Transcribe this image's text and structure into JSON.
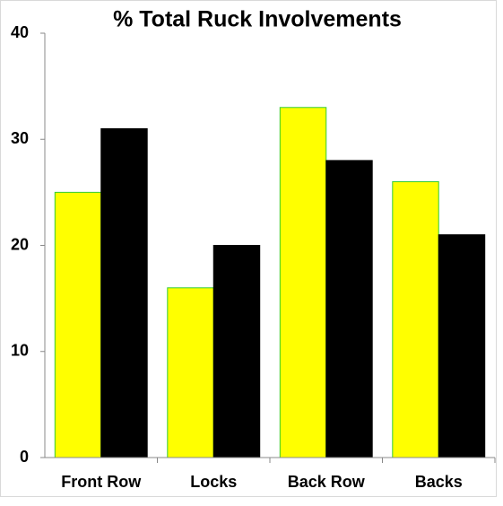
{
  "chart_data": {
    "type": "bar",
    "title": "% Total Ruck Involvements",
    "categories": [
      "Front Row",
      "Locks",
      "Back Row",
      "Backs"
    ],
    "series": [
      {
        "color": "#ffff00",
        "values": [
          25,
          16,
          33,
          26
        ]
      },
      {
        "color": "#000000",
        "values": [
          31,
          20,
          28,
          21
        ]
      }
    ],
    "ylim": [
      0,
      40
    ],
    "yticks": [
      0,
      10,
      20,
      30,
      40
    ]
  }
}
